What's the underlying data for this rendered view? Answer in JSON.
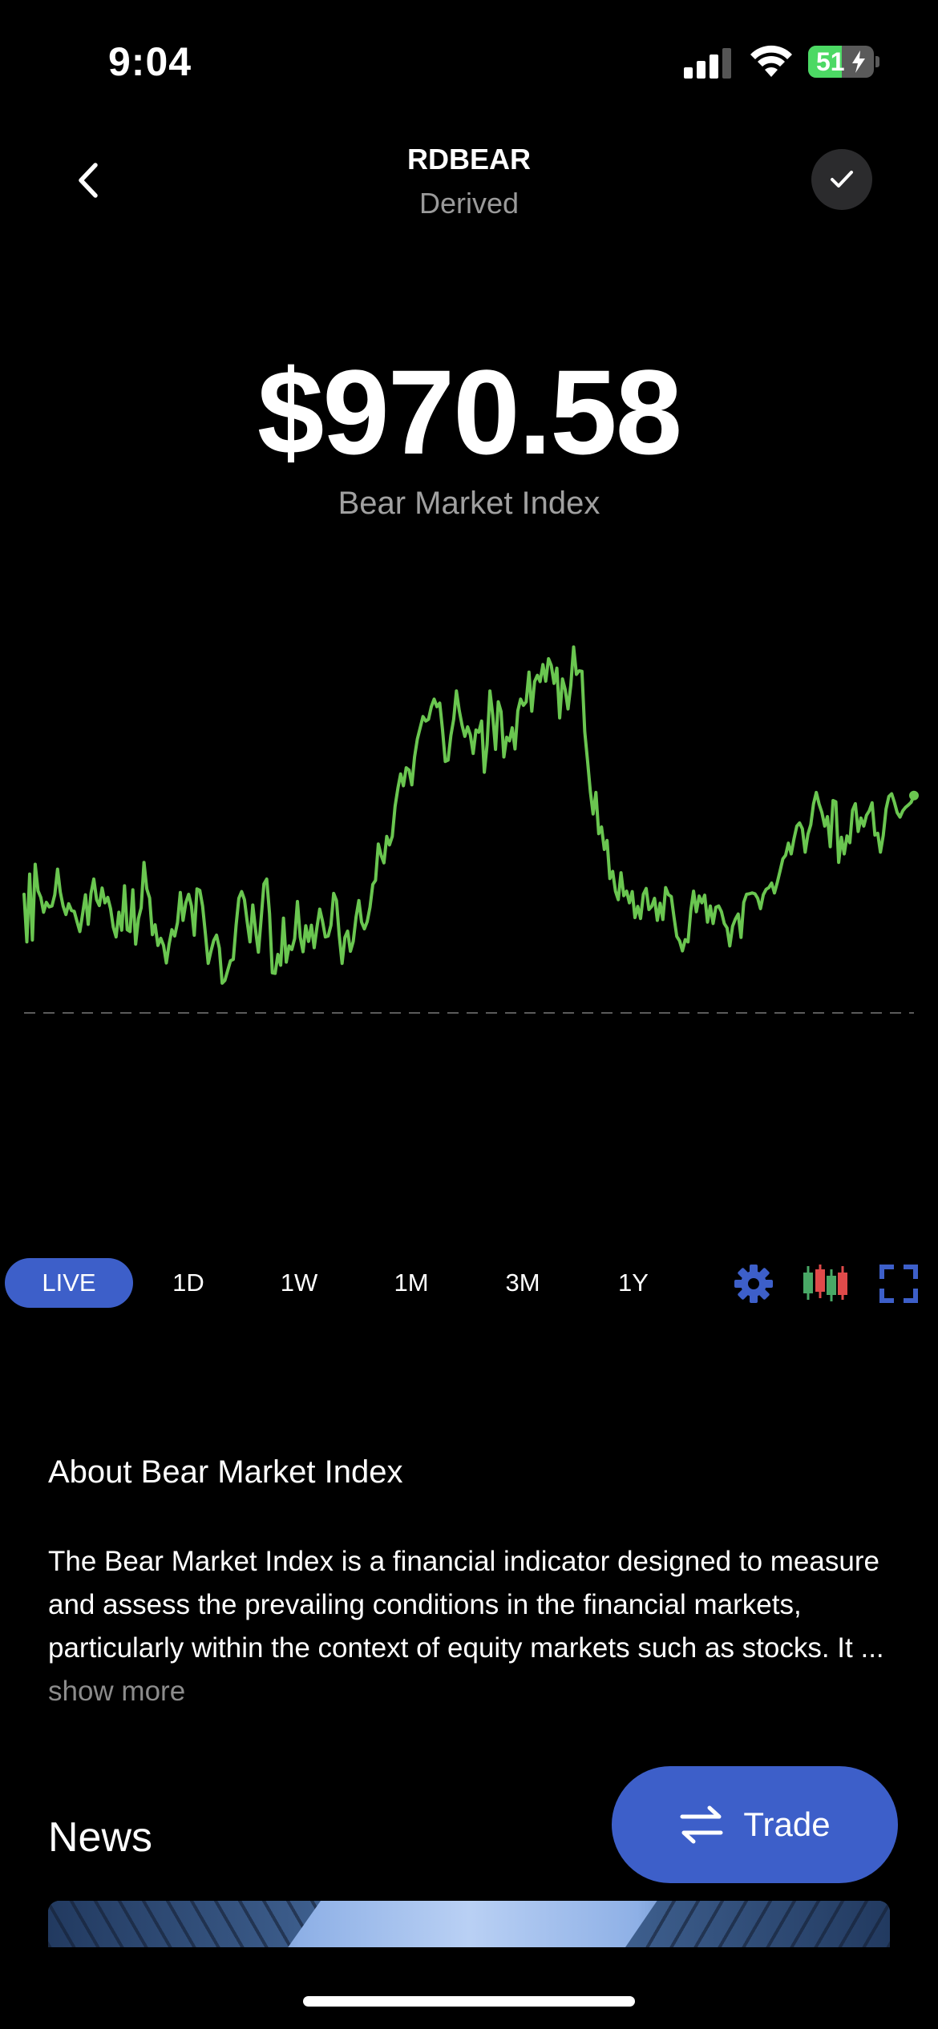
{
  "status_bar": {
    "time": "9:04",
    "battery": "51",
    "battery_level": 0.51
  },
  "nav": {
    "title": "RDBEAR",
    "subtitle": "Derived"
  },
  "price": {
    "value": "$970.58",
    "label": "Bear Market Index"
  },
  "chart_data": {
    "type": "line",
    "line_color": "#6ac650",
    "reference_line": {
      "style": "dashed",
      "color": "#5a5a5a"
    },
    "values": [
      650,
      544,
      695,
      548,
      717,
      658,
      643,
      610,
      632,
      622,
      624,
      649,
      706,
      655,
      624,
      605,
      629,
      614,
      612,
      589,
      567,
      607,
      649,
      583,
      652,
      684,
      638,
      625,
      664,
      631,
      643,
      618,
      577,
      555,
      610,
      570,
      669,
      571,
      567,
      660,
      539,
      596,
      620,
      721,
      662,
      642,
      560,
      582,
      536,
      552,
      536,
      497,
      539,
      571,
      557,
      587,
      654,
      592,
      631,
      650,
      624,
      559,
      662,
      659,
      624,
      562,
      496,
      523,
      547,
      559,
      530,
      452,
      458,
      480,
      502,
      505,
      581,
      641,
      656,
      638,
      588,
      544,
      626,
      570,
      521,
      597,
      673,
      684,
      607,
      475,
      474,
      516,
      492,
      597,
      499,
      535,
      527,
      551,
      634,
      555,
      522,
      580,
      545,
      581,
      531,
      577,
      617,
      590,
      555,
      557,
      581,
      652,
      636,
      557,
      496,
      554,
      568,
      523,
      545,
      599,
      636,
      588,
      573,
      589,
      621,
      672,
      681,
      762,
      737,
      720,
      779,
      760,
      779,
      846,
      886,
      918,
      892,
      932,
      927,
      894,
      956,
      996,
      1021,
      1046,
      1036,
      1040,
      1068,
      1085,
      1068,
      1076,
      1018,
      946,
      949,
      1004,
      1040,
      1103,
      1060,
      1027,
      1002,
      1023,
      1005,
      964,
      1016,
      1011,
      1036,
      922,
      984,
      1103,
      1049,
      973,
      1079,
      1057,
      956,
      1000,
      992,
      1021,
      974,
      1059,
      1085,
      1071,
      1079,
      1145,
      1058,
      1124,
      1138,
      1124,
      1162,
      1125,
      1175,
      1160,
      1120,
      1154,
      1043,
      1130,
      1106,
      1063,
      1116,
      1201,
      1140,
      1148,
      1147,
      1012,
      947,
      878,
      829,
      877,
      785,
      800,
      750,
      770,
      685,
      701,
      657,
      638,
      698,
      647,
      657,
      631,
      656,
      598,
      623,
      596,
      650,
      663,
      616,
      623,
      641,
      592,
      630,
      594,
      665,
      649,
      645,
      598,
      556,
      546,
      524,
      549,
      544,
      613,
      657,
      611,
      646,
      631,
      648,
      588,
      624,
      585,
      621,
      624,
      611,
      585,
      575,
      535,
      579,
      595,
      606,
      554,
      632,
      650,
      651,
      653,
      651,
      641,
      618,
      649,
      661,
      665,
      675,
      653,
      676,
      702,
      729,
      737,
      764,
      740,
      774,
      802,
      809,
      796,
      744,
      784,
      805,
      851,
      877,
      851,
      832,
      802,
      823,
      756,
      859,
      856,
      721,
      777,
      740,
      780,
      765,
      837,
      852,
      790,
      820,
      802,
      826,
      836,
      854,
      782,
      786,
      744,
      781,
      840,
      868,
      874,
      855,
      832,
      822,
      836,
      844,
      849,
      855,
      870
    ]
  },
  "range_tabs": [
    {
      "label": "LIVE",
      "active": true
    },
    {
      "label": "1D",
      "active": false
    },
    {
      "label": "1W",
      "active": false
    },
    {
      "label": "1M",
      "active": false
    },
    {
      "label": "3M",
      "active": false
    },
    {
      "label": "1Y",
      "active": false
    }
  ],
  "tools": {
    "accent": "#3d5fc9",
    "settings_icon": "gear-icon",
    "chart_type_icon": "candlestick-icon",
    "fullscreen_icon": "expand-icon"
  },
  "about": {
    "title": "About Bear Market Index",
    "body": "The Bear Market Index is a financial indicator designed to measure and assess the prevailing conditions in the financial markets, particularly within the context of equity markets such as stocks. It ...",
    "show_more": "show more"
  },
  "news": {
    "title": "News"
  },
  "trade_button": {
    "label": "Trade"
  }
}
